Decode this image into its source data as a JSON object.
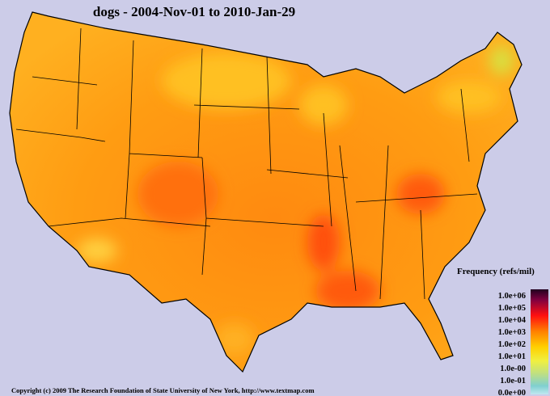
{
  "header": {
    "title": "dogs - 2004-Nov-01 to 2010-Jan-29"
  },
  "legend": {
    "title": "Frequency (refs/mil)",
    "labels": [
      "1.0e+06",
      "1.0e+05",
      "1.0e+04",
      "1.0e+03",
      "1.0e+02",
      "1.0e+01",
      "1.0e-00",
      "1.0e-01",
      "0.0e+00"
    ]
  },
  "footer": {
    "copyright": "Copyright (c) 2009 The Research Foundation of State University of New York, http://www.textmap.com"
  }
}
